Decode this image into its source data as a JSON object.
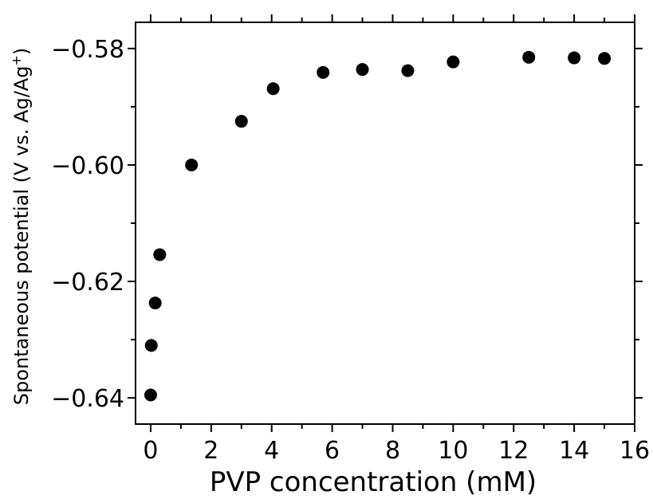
{
  "chart_data": {
    "type": "scatter",
    "xlabel": "PVP concentration (mM)",
    "ylabel_main": "Spontaneous potential (V vs. Ag/Ag",
    "ylabel_sup": "+",
    "ylabel_close": ")",
    "xlim": [
      -0.5,
      16
    ],
    "ylim": [
      -0.6445,
      -0.5755
    ],
    "xticks": [
      0,
      2,
      4,
      6,
      8,
      10,
      12,
      14,
      16
    ],
    "xtick_labels": [
      "0",
      "2",
      "4",
      "6",
      "8",
      "10",
      "12",
      "14",
      "16"
    ],
    "yticks": [
      -0.58,
      -0.6,
      -0.62,
      -0.64
    ],
    "ytick_labels": [
      "−0.58",
      "−0.60",
      "−0.62",
      "−0.64"
    ],
    "points": [
      {
        "x": 0.0,
        "y": -0.6395
      },
      {
        "x": 0.02,
        "y": -0.631
      },
      {
        "x": 0.15,
        "y": -0.6237
      },
      {
        "x": 0.3,
        "y": -0.6154
      },
      {
        "x": 1.35,
        "y": -0.6
      },
      {
        "x": 3.0,
        "y": -0.5925
      },
      {
        "x": 4.05,
        "y": -0.5869
      },
      {
        "x": 5.7,
        "y": -0.5841
      },
      {
        "x": 7.0,
        "y": -0.5836
      },
      {
        "x": 8.5,
        "y": -0.5838
      },
      {
        "x": 10.0,
        "y": -0.5823
      },
      {
        "x": 12.5,
        "y": -0.5815
      },
      {
        "x": 14.0,
        "y": -0.5816
      },
      {
        "x": 15.0,
        "y": -0.5817
      }
    ],
    "marker_color": "#000000",
    "grid": false,
    "legend": "none"
  }
}
